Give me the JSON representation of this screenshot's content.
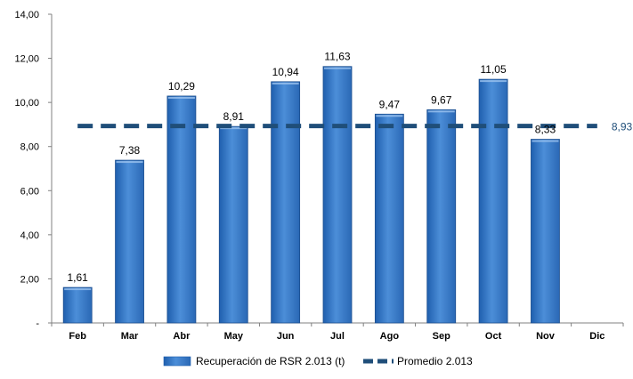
{
  "chart_data": {
    "type": "bar",
    "title": "",
    "xlabel": "",
    "ylabel": "",
    "categories": [
      "Feb",
      "Mar",
      "Abr",
      "May",
      "Jun",
      "Jul",
      "Ago",
      "Sep",
      "Oct",
      "Nov",
      "Dic"
    ],
    "series": [
      {
        "name": "Recuperación de RSR 2.013 (t)",
        "kind": "bar",
        "values": [
          1.61,
          7.38,
          10.29,
          8.91,
          10.94,
          11.63,
          9.47,
          9.67,
          11.05,
          8.33,
          null
        ],
        "labels": [
          "1,61",
          "7,38",
          "10,29",
          "8,91",
          "10,94",
          "11,63",
          "9,47",
          "9,67",
          "11,05",
          "8,33",
          ""
        ],
        "color": "#3a78c4"
      },
      {
        "name": "Promedio 2.013",
        "kind": "line-dashed",
        "value": 8.93,
        "label": "8,93",
        "color": "#1f4e79"
      }
    ],
    "ylim": [
      0,
      14
    ],
    "yticks": [
      0,
      2,
      4,
      6,
      8,
      10,
      12,
      14
    ],
    "ytick_labels": [
      "-",
      "2,00",
      "4,00",
      "6,00",
      "8,00",
      "10,00",
      "12,00",
      "14,00"
    ],
    "grid": false,
    "legend_position": "bottom"
  }
}
